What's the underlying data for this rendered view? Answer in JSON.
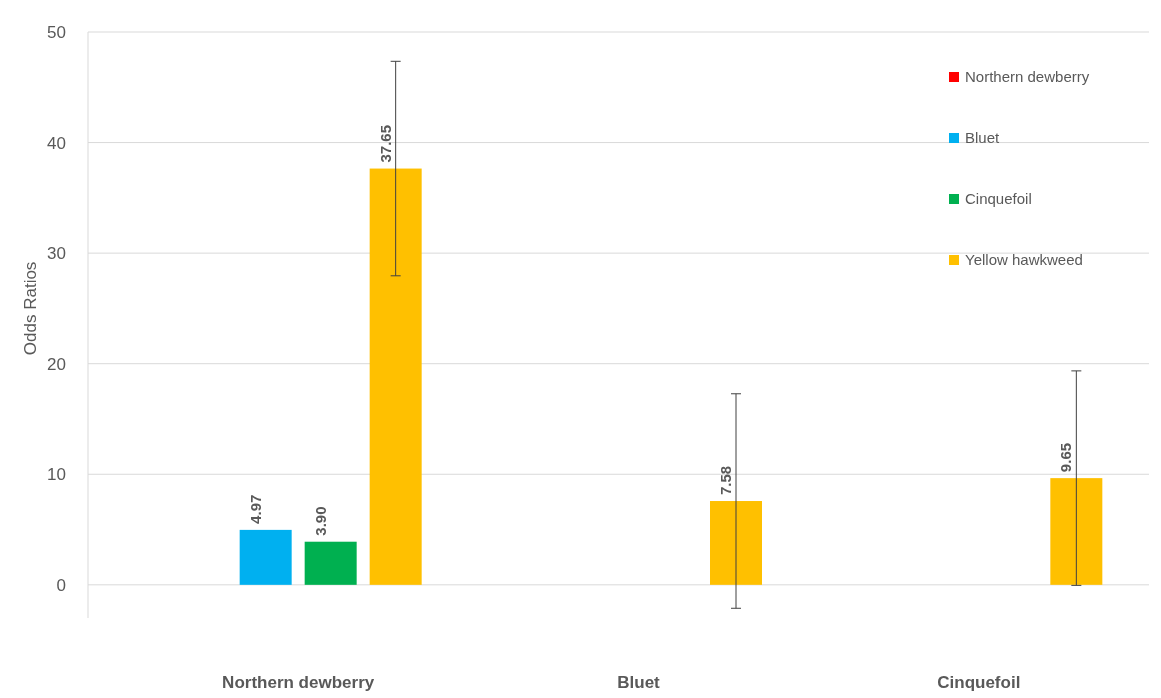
{
  "chart_data": {
    "type": "bar",
    "ylabel": "Odds Ratios",
    "categories": [
      "Northern dewberry",
      "Bluet",
      "Cinquefoil"
    ],
    "series": [
      {
        "name": "Northern dewberry",
        "color": "#ff0000",
        "values": [
          null,
          null,
          null
        ]
      },
      {
        "name": "Bluet",
        "color": "#00b0f0",
        "values": [
          4.97,
          null,
          null
        ],
        "value_labels": [
          "4.97",
          null,
          null
        ]
      },
      {
        "name": "Cinquefoil",
        "color": "#00b050",
        "values": [
          3.9,
          null,
          null
        ],
        "value_labels": [
          "3.90",
          null,
          null
        ]
      },
      {
        "name": "Yellow hawkweed",
        "color": "#ffc000",
        "values": [
          37.65,
          7.58,
          9.65
        ],
        "value_labels": [
          "37.65",
          "7.58",
          "9.65"
        ],
        "errors": [
          9.7,
          9.7,
          9.7
        ]
      }
    ],
    "ylim": [
      -3,
      50
    ],
    "yticks": [
      0,
      10,
      20,
      30,
      40,
      50
    ],
    "grid": "y",
    "legend": "top right"
  }
}
